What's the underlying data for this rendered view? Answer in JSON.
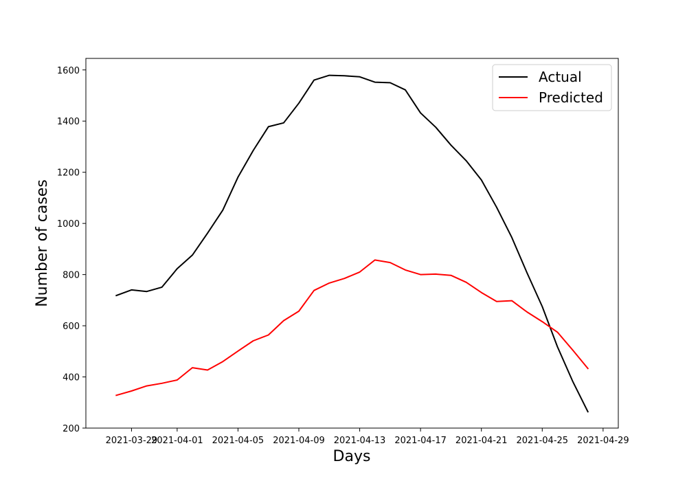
{
  "chart_data": {
    "type": "line",
    "title": "",
    "xlabel": "Days",
    "ylabel": "Number of cases",
    "x": [
      "2021-03-28",
      "2021-03-29",
      "2021-03-30",
      "2021-03-31",
      "2021-04-01",
      "2021-04-02",
      "2021-04-03",
      "2021-04-04",
      "2021-04-05",
      "2021-04-06",
      "2021-04-07",
      "2021-04-08",
      "2021-04-09",
      "2021-04-10",
      "2021-04-11",
      "2021-04-12",
      "2021-04-13",
      "2021-04-14",
      "2021-04-15",
      "2021-04-16",
      "2021-04-17",
      "2021-04-18",
      "2021-04-19",
      "2021-04-20",
      "2021-04-21",
      "2021-04-22",
      "2021-04-23",
      "2021-04-24",
      "2021-04-25",
      "2021-04-26",
      "2021-04-27",
      "2021-04-28"
    ],
    "series": [
      {
        "name": "Actual",
        "color": "#000000",
        "values": [
          718,
          740,
          734,
          751,
          823,
          876,
          962,
          1052,
          1181,
          1285,
          1378,
          1393,
          1470,
          1560,
          1579,
          1577,
          1573,
          1552,
          1550,
          1522,
          1432,
          1376,
          1306,
          1245,
          1170,
          1063,
          945,
          807,
          675,
          518,
          383,
          264
        ]
      },
      {
        "name": "Predicted",
        "color": "#ff0000",
        "values": [
          328,
          345,
          365,
          375,
          388,
          436,
          427,
          460,
          501,
          541,
          564,
          620,
          657,
          738,
          767,
          785,
          810,
          857,
          847,
          818,
          800,
          802,
          797,
          770,
          730,
          695,
          698,
          654,
          616,
          575,
          505,
          433
        ]
      }
    ],
    "xticks": [
      "2021-03-29",
      "2021-04-01",
      "2021-04-05",
      "2021-04-09",
      "2021-04-13",
      "2021-04-17",
      "2021-04-21",
      "2021-04-25",
      "2021-04-29"
    ],
    "yticks": [
      200,
      400,
      600,
      800,
      1000,
      1200,
      1400,
      1600
    ],
    "ylim": [
      200,
      1645
    ],
    "xlim": [
      "2021-03-26",
      "2021-04-30"
    ],
    "legend": "top-right",
    "grid": false
  }
}
